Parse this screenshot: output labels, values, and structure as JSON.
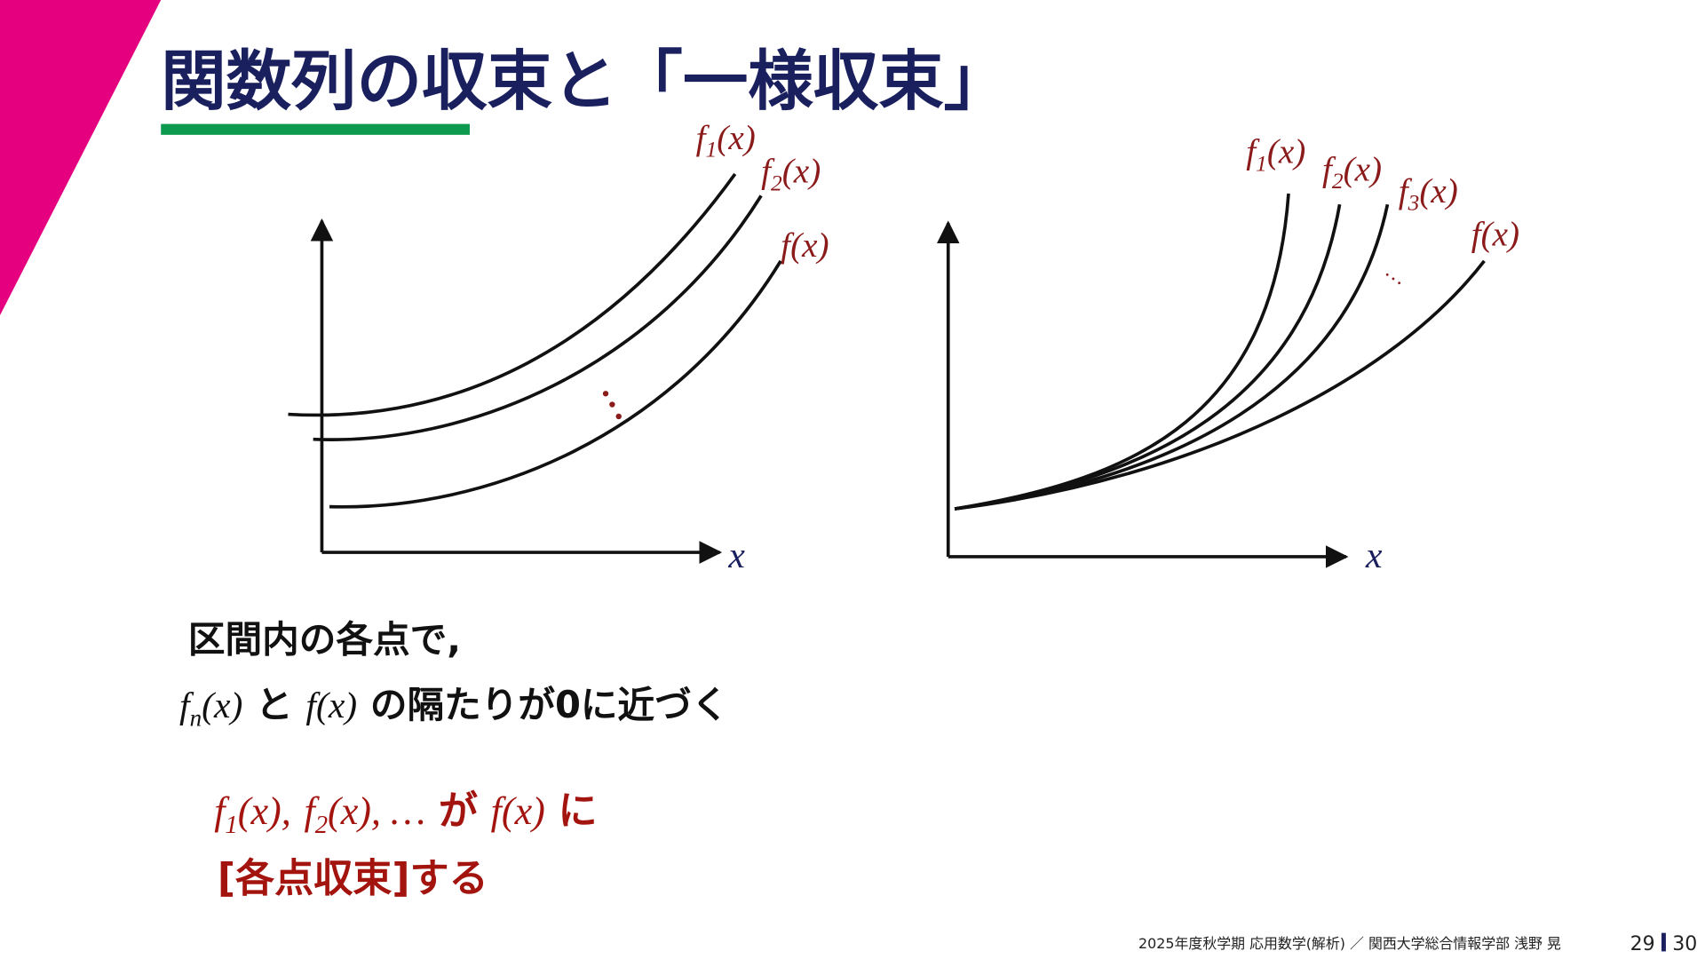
{
  "title": "関数列の収束と「一様収束」",
  "left_graph": {
    "labels": [
      {
        "f": "f",
        "sub": "1",
        "arg": "(x)"
      },
      {
        "f": "f",
        "sub": "2",
        "arg": "(x)"
      },
      {
        "f": "f",
        "arg": "(x)"
      }
    ],
    "x_label": "x"
  },
  "right_graph": {
    "labels": [
      {
        "f": "f",
        "sub": "1",
        "arg": "(x)"
      },
      {
        "f": "f",
        "sub": "2",
        "arg": "(x)"
      },
      {
        "f": "f",
        "sub": "3",
        "arg": "(x)"
      },
      {
        "f": "f",
        "arg": "(x)"
      }
    ],
    "ellipsis": "…",
    "x_label": "x"
  },
  "body": {
    "line1": "区間内の各点で,",
    "line2": [
      {
        "f": "f",
        "sub": "n",
        "arg": "(x)"
      },
      {
        "text": "と"
      },
      {
        "f": "f",
        "arg": "(x)"
      },
      {
        "text": "の隔たりが0に近づく"
      }
    ]
  },
  "conclusion": {
    "line1": [
      {
        "f": "f",
        "sub": "1",
        "arg": "(x),"
      },
      {
        "f": "f",
        "sub": "2",
        "arg": "(x), …"
      },
      {
        "text": "が"
      },
      {
        "f": "f",
        "arg": "(x)"
      },
      {
        "text": "に"
      }
    ],
    "line2": "[各点収束]する"
  },
  "footer": {
    "course": "2025年度秋学期 応用数学(解析) ／ 関西大学総合情報学部 浅野 晃",
    "page": "29",
    "total": "30"
  }
}
